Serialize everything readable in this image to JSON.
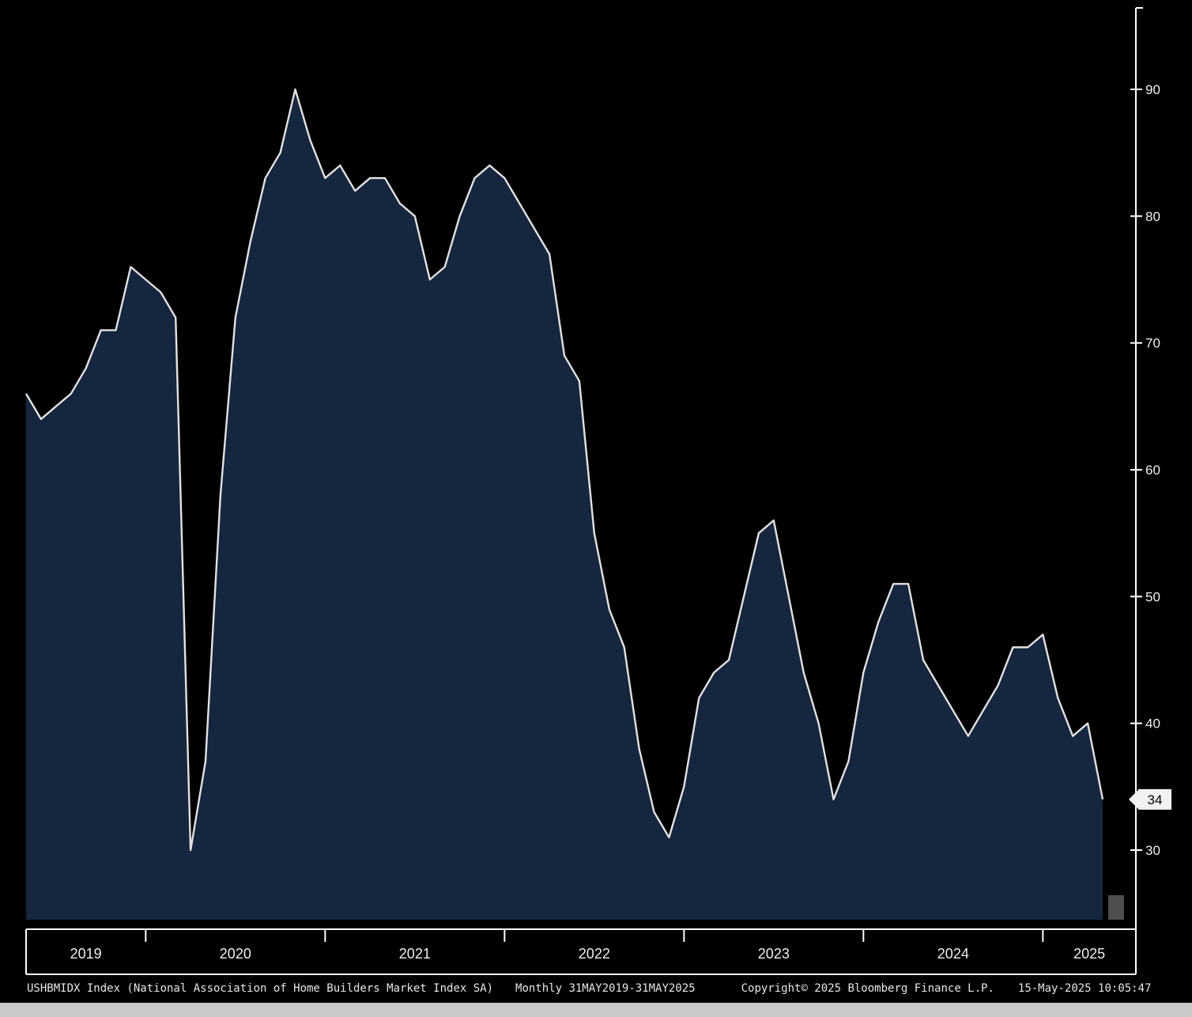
{
  "footer": {
    "description": "USHBMIDX Index (National Association of Home Builders Market Index SA)",
    "periodicity": "Monthly 31MAY2019-31MAY2025",
    "copyright": "Copyright© 2025 Bloomberg Finance L.P.",
    "timestamp": "15-May-2025 10:05:47"
  },
  "colors": {
    "background": "#000000",
    "area_fill": "#16263f",
    "line": "#e2e2e2",
    "axis": "#ffffff",
    "tick_label": "#efefef",
    "year_label": "#efefef",
    "badge_bg": "#f2f2f2",
    "badge_text": "#000000",
    "partial_bar": "#4e4e4e"
  },
  "chart_data": {
    "type": "area",
    "title": "USHBMIDX Index (National Association of Home Builders Market Index SA)",
    "frequency": "monthly",
    "x_start": "2019-05",
    "x_end": "2025-05",
    "x_tick_labels": [
      "2019",
      "2020",
      "2021",
      "2022",
      "2023",
      "2024",
      "2025"
    ],
    "y_ticks": [
      30,
      40,
      50,
      60,
      70,
      80,
      90
    ],
    "ylim": [
      24,
      96
    ],
    "grid": false,
    "legend": false,
    "last_value": 34,
    "series": [
      {
        "name": "USHBMIDX Index",
        "values": [
          66,
          64,
          65,
          66,
          68,
          71,
          71,
          76,
          75,
          74,
          72,
          30,
          37,
          58,
          72,
          78,
          83,
          85,
          90,
          86,
          83,
          84,
          82,
          83,
          83,
          81,
          80,
          75,
          76,
          80,
          83,
          84,
          83,
          81,
          79,
          77,
          69,
          67,
          55,
          49,
          46,
          38,
          33,
          31,
          35,
          42,
          44,
          45,
          50,
          55,
          56,
          50,
          44,
          40,
          34,
          37,
          44,
          48,
          51,
          51,
          45,
          43,
          41,
          39,
          41,
          43,
          46,
          46,
          47,
          42,
          39,
          40,
          34
        ]
      }
    ]
  }
}
